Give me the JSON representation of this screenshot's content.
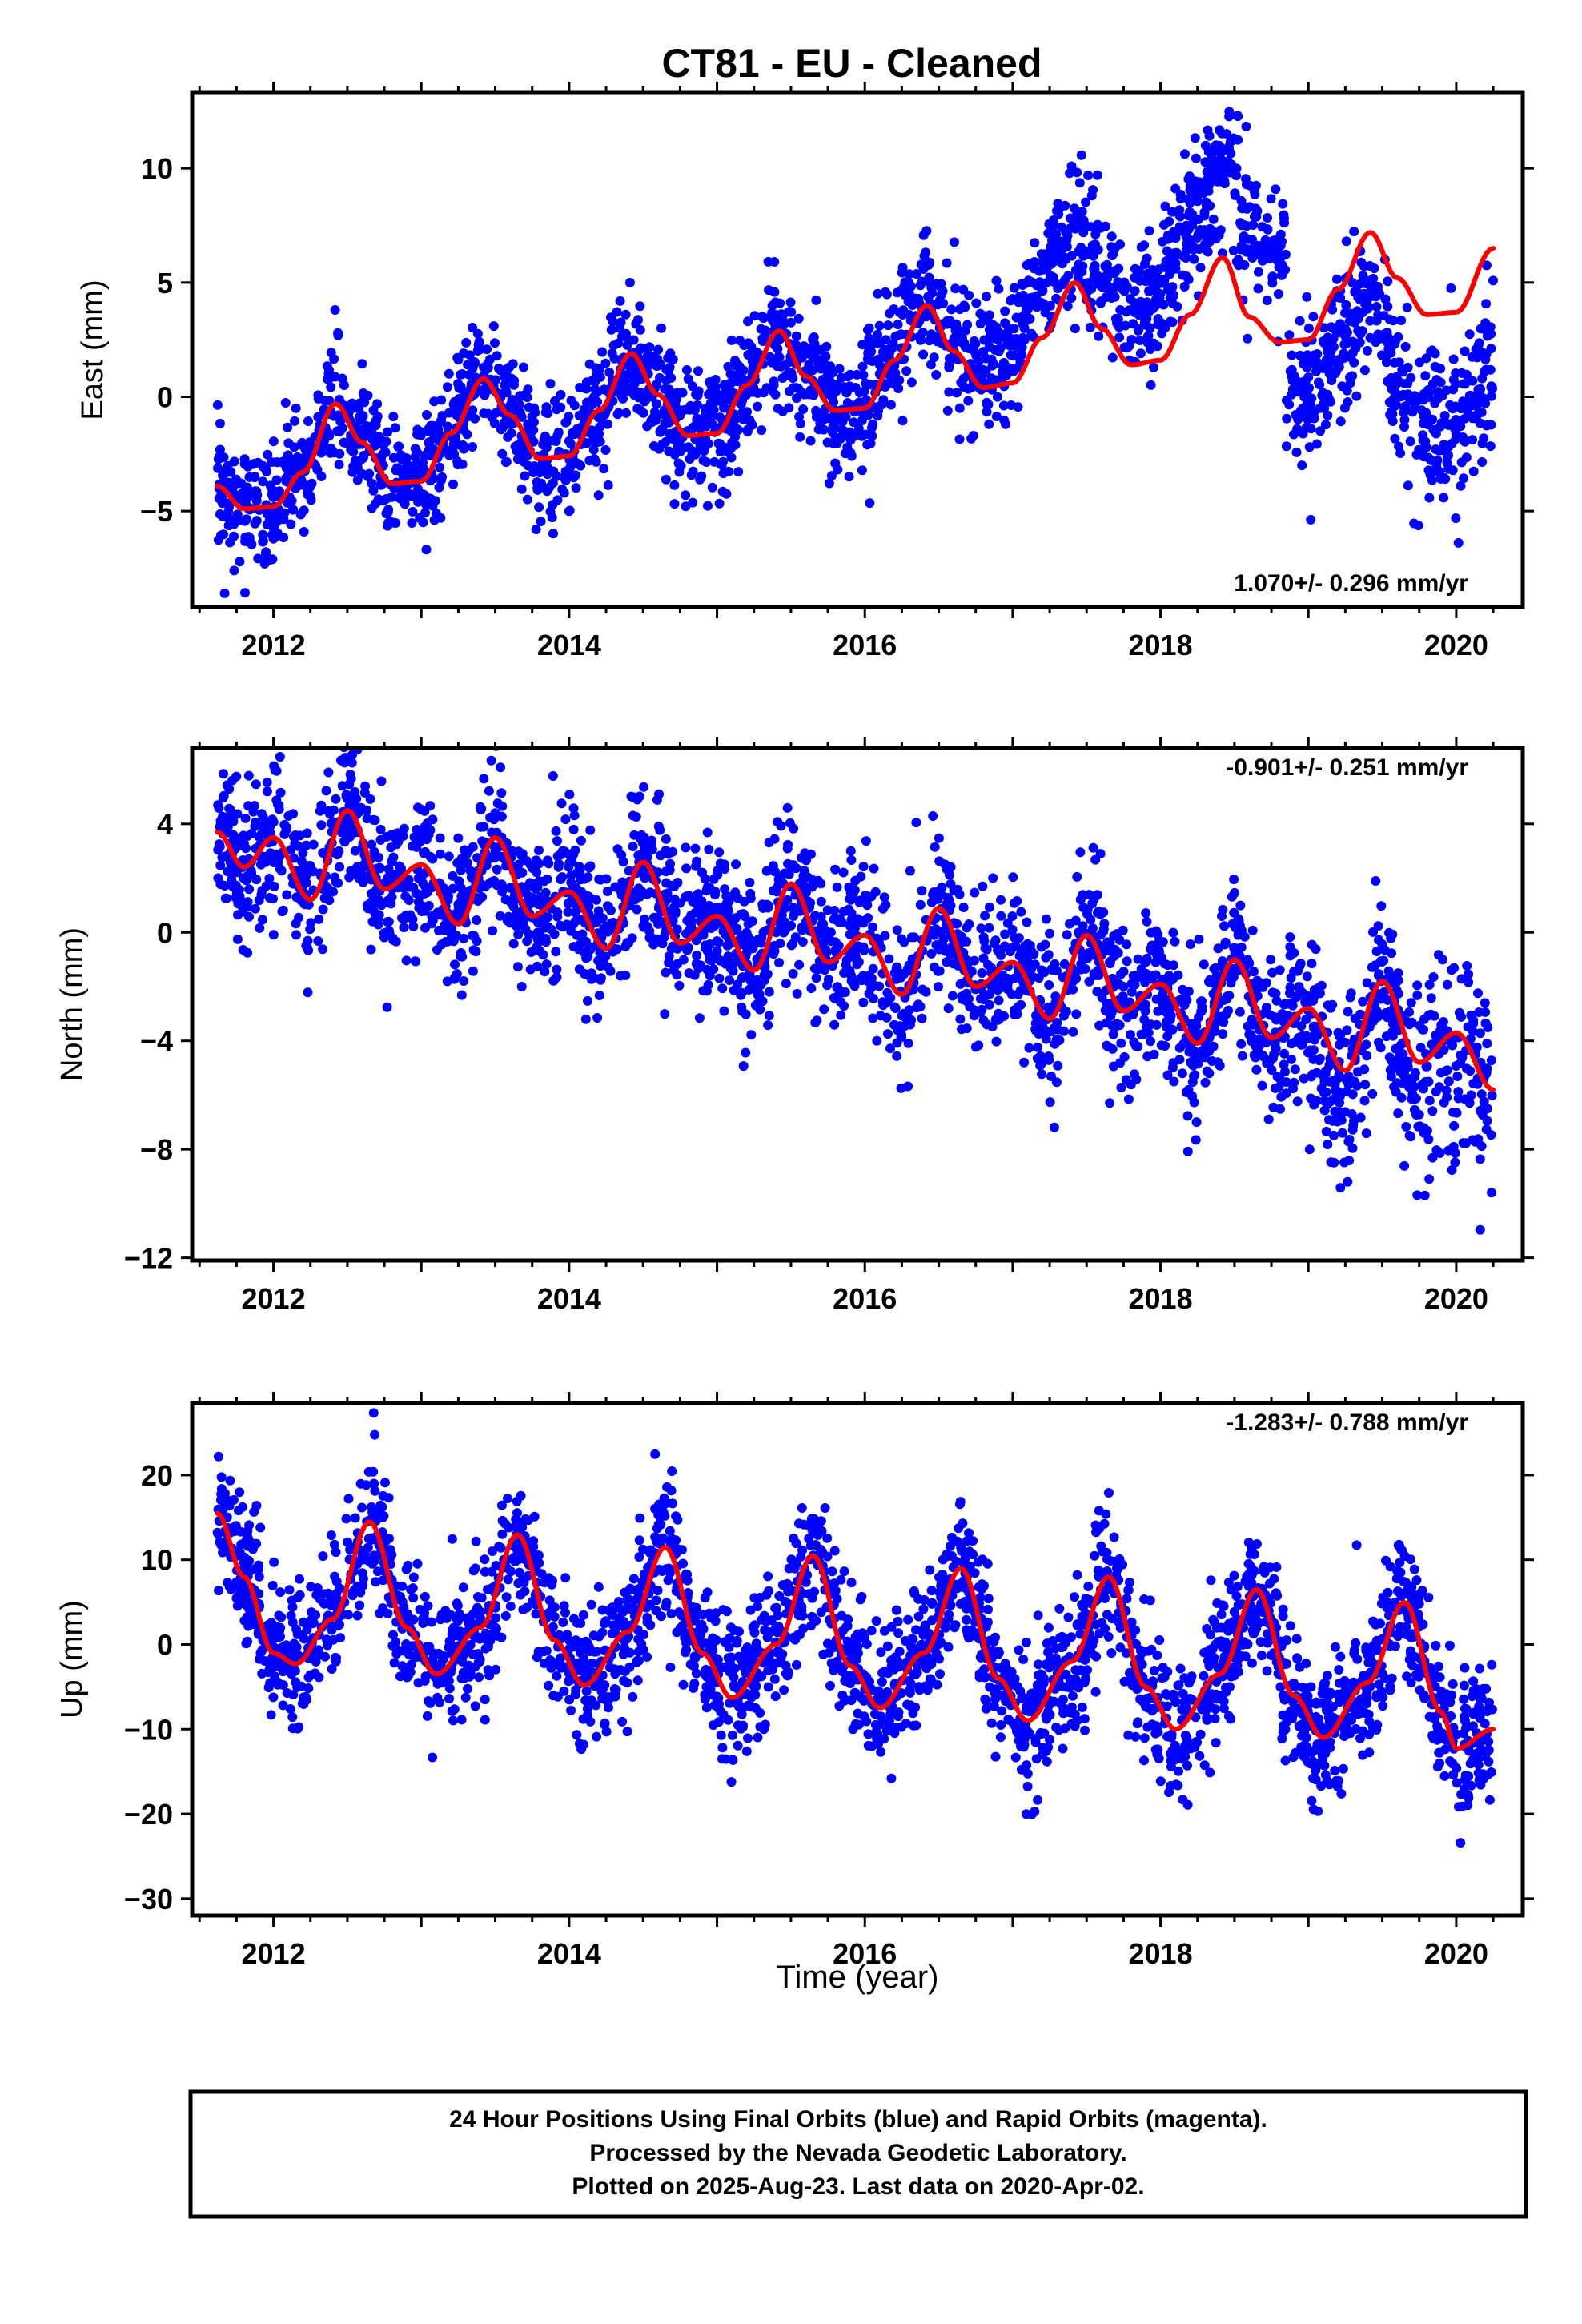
{
  "figure": {
    "title": "CT81  - EU - Cleaned",
    "xlabel": "Time (year)",
    "footer": [
      "24 Hour Positions Using Final Orbits (blue) and Rapid Orbits (magenta).",
      "Processed by the Nevada Geodetic Laboratory.",
      "Plotted on 2025-Aug-23. Last data on 2020-Apr-02."
    ]
  },
  "colors": {
    "points": "#0000ff",
    "fit": "#ff0000",
    "axes": "#000000",
    "background": "#ffffff"
  },
  "chart_data": [
    {
      "type": "scatter",
      "name": "east",
      "title": "",
      "xlabel": "",
      "ylabel": "East (mm)",
      "xlim": [
        2011.45,
        2020.45
      ],
      "ylim": [
        -9.2,
        13.3
      ],
      "xticks": [
        2012,
        2014,
        2016,
        2018,
        2020
      ],
      "yticks": [
        -5,
        0,
        5,
        10
      ],
      "tick_labels_x": [
        "2012",
        "2014",
        "2016",
        "2018",
        "2020"
      ],
      "tick_labels_y": [
        "−5",
        "0",
        "5",
        "10"
      ],
      "rate_label": "1.070+/- 0.296 mm/yr",
      "rate_position": "bottom-right",
      "data_span": [
        2011.62,
        2020.25
      ],
      "fit_curve": {
        "x": [
          2011.62,
          2011.8,
          2012.0,
          2012.2,
          2012.42,
          2012.6,
          2012.8,
          2013.0,
          2013.2,
          2013.42,
          2013.6,
          2013.8,
          2014.0,
          2014.2,
          2014.42,
          2014.6,
          2014.8,
          2015.0,
          2015.2,
          2015.42,
          2015.6,
          2015.8,
          2016.0,
          2016.2,
          2016.42,
          2016.6,
          2016.8,
          2017.0,
          2017.2,
          2017.42,
          2017.6,
          2017.8,
          2018.0,
          2018.2,
          2018.42,
          2018.6,
          2018.8,
          2019.0,
          2019.2,
          2019.42,
          2019.6,
          2019.8,
          2020.0,
          2020.25
        ],
        "y": [
          -3.9,
          -4.9,
          -4.8,
          -3.3,
          -0.3,
          -2.0,
          -3.8,
          -3.7,
          -1.6,
          0.8,
          -0.8,
          -2.7,
          -2.6,
          -0.6,
          1.9,
          0.1,
          -1.7,
          -1.6,
          0.5,
          2.9,
          0.9,
          -0.6,
          -0.5,
          1.6,
          4.0,
          2.0,
          0.4,
          0.6,
          2.6,
          5.0,
          3.0,
          1.4,
          1.6,
          3.6,
          6.1,
          3.5,
          2.4,
          2.5,
          4.7,
          7.2,
          5.2,
          3.6,
          3.7,
          6.5
        ]
      },
      "points": {
        "note": "daily position scatter (~3000 epochs), approximated as fit + scatter",
        "segments": [
          {
            "from": 2011.62,
            "to": 2016.0,
            "scatter_sd": 1.3,
            "offset": 0
          },
          {
            "from": 2016.0,
            "to": 2017.0,
            "scatter_sd": 1.5,
            "offset": 0.7
          },
          {
            "from": 2017.0,
            "to": 2018.0,
            "scatter_sd": 1.4,
            "offset": 2.2
          },
          {
            "from": 2018.0,
            "to": 2018.85,
            "scatter_sd": 1.5,
            "offset": 4.0
          },
          {
            "from": 2018.85,
            "to": 2019.55,
            "scatter_sd": 1.6,
            "offset": -2.5
          },
          {
            "from": 2019.55,
            "to": 2020.25,
            "scatter_sd": 1.7,
            "offset": -5.0
          }
        ]
      }
    },
    {
      "type": "scatter",
      "name": "north",
      "title": "",
      "xlabel": "",
      "ylabel": "North (mm)",
      "xlim": [
        2011.45,
        2020.45
      ],
      "ylim": [
        -12.1,
        6.8
      ],
      "xticks": [
        2012,
        2014,
        2016,
        2018,
        2020
      ],
      "yticks": [
        -12,
        -8,
        -4,
        0,
        4
      ],
      "tick_labels_x": [
        "2012",
        "2014",
        "2016",
        "2018",
        "2020"
      ],
      "tick_labels_y": [
        "−12",
        "−8",
        "−4",
        "0",
        "4"
      ],
      "rate_label": "-0.901+/- 0.251 mm/yr",
      "rate_position": "top-right",
      "data_span": [
        2011.62,
        2020.25
      ],
      "fit_curve": {
        "x": [
          2011.62,
          2011.8,
          2012.0,
          2012.25,
          2012.5,
          2012.75,
          2013.0,
          2013.25,
          2013.5,
          2013.75,
          2014.0,
          2014.25,
          2014.5,
          2014.75,
          2015.0,
          2015.25,
          2015.5,
          2015.75,
          2016.0,
          2016.25,
          2016.5,
          2016.75,
          2017.0,
          2017.25,
          2017.5,
          2017.75,
          2018.0,
          2018.25,
          2018.5,
          2018.75,
          2019.0,
          2019.25,
          2019.5,
          2019.75,
          2020.0,
          2020.25
        ],
        "y": [
          3.7,
          2.4,
          3.5,
          1.2,
          4.5,
          1.6,
          2.5,
          0.3,
          3.5,
          0.6,
          1.5,
          -0.6,
          2.6,
          -0.4,
          0.6,
          -1.4,
          1.8,
          -1.1,
          -0.1,
          -2.3,
          0.9,
          -2.0,
          -1.1,
          -3.2,
          -0.1,
          -2.9,
          -1.9,
          -4.1,
          -1.0,
          -3.9,
          -2.8,
          -5.1,
          -1.8,
          -4.8,
          -3.7,
          -5.8
        ]
      },
      "points": {
        "note": "daily position scatter, approximated as fit + scatter",
        "segments": [
          {
            "from": 2011.62,
            "to": 2019.0,
            "scatter_sd": 1.4,
            "offset": 0
          },
          {
            "from": 2019.0,
            "to": 2020.25,
            "scatter_sd": 1.7,
            "offset": -0.8
          }
        ]
      }
    },
    {
      "type": "scatter",
      "name": "up",
      "title": "",
      "xlabel": "Time (year)",
      "ylabel": "Up (mm)",
      "xlim": [
        2011.45,
        2020.45
      ],
      "ylim": [
        -32.0,
        28.5
      ],
      "xticks": [
        2012,
        2014,
        2016,
        2018,
        2020
      ],
      "yticks": [
        -30,
        -20,
        -10,
        0,
        10,
        20
      ],
      "tick_labels_x": [
        "2012",
        "2014",
        "2016",
        "2018",
        "2020"
      ],
      "tick_labels_y": [
        "−30",
        "−20",
        "−10",
        "0",
        "10",
        "20"
      ],
      "rate_label": "-1.283+/- 0.788 mm/yr",
      "rate_position": "top-right",
      "data_span": [
        2011.62,
        2020.25
      ],
      "fit_curve": {
        "x": [
          2011.62,
          2011.8,
          2012.0,
          2012.15,
          2012.4,
          2012.65,
          2012.9,
          2013.1,
          2013.4,
          2013.65,
          2013.9,
          2014.1,
          2014.4,
          2014.65,
          2014.9,
          2015.1,
          2015.4,
          2015.65,
          2015.9,
          2016.1,
          2016.4,
          2016.65,
          2016.9,
          2017.1,
          2017.4,
          2017.65,
          2017.9,
          2018.1,
          2018.4,
          2018.65,
          2018.9,
          2019.1,
          2019.4,
          2019.65,
          2019.9,
          2020.0,
          2020.25
        ],
        "y": [
          15.5,
          8.0,
          -1.0,
          -2.3,
          3.0,
          14.5,
          2.0,
          -3.5,
          2.0,
          13.0,
          0.5,
          -4.8,
          1.5,
          11.5,
          -1.0,
          -6.3,
          0.0,
          10.5,
          -2.5,
          -7.5,
          -1.0,
          9.0,
          -4.0,
          -9.0,
          -2.0,
          8.0,
          -5.0,
          -10.0,
          -3.5,
          6.5,
          -6.0,
          -11.0,
          -4.5,
          5.0,
          -8.0,
          -12.3,
          -10.0
        ]
      },
      "points": {
        "note": "daily position scatter, approximated as fit + scatter",
        "segments": [
          {
            "from": 2011.62,
            "to": 2020.25,
            "scatter_sd": 4.0,
            "offset": 0
          }
        ]
      }
    }
  ]
}
